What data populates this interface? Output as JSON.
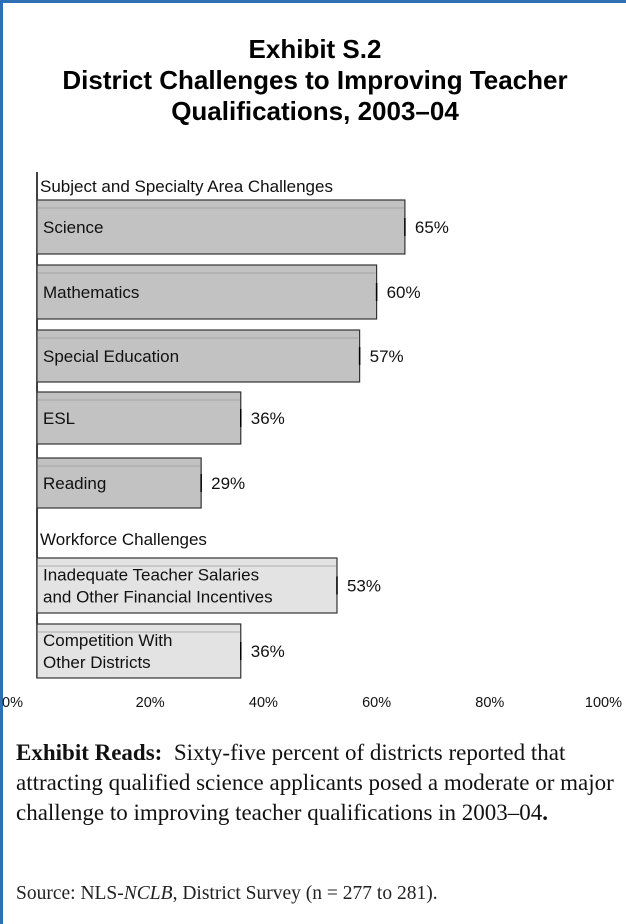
{
  "exhibit": {
    "title_line1": "Exhibit S.2",
    "title_line2": "District Challenges to Improving Teacher",
    "title_line3": "Qualifications, 2003–04"
  },
  "chart_data": {
    "type": "bar",
    "orientation": "horizontal",
    "groups": [
      {
        "heading": "Subject and Specialty Area Challenges",
        "categories": [
          {
            "label": [
              "Science"
            ],
            "value": 65,
            "value_label": "65%"
          },
          {
            "label": [
              "Mathematics"
            ],
            "value": 60,
            "value_label": "60%"
          },
          {
            "label": [
              "Special Education"
            ],
            "value": 57,
            "value_label": "57%"
          },
          {
            "label": [
              "ESL"
            ],
            "value": 36,
            "value_label": "36%"
          },
          {
            "label": [
              "Reading"
            ],
            "value": 29,
            "value_label": "29%"
          }
        ]
      },
      {
        "heading": "Workforce Challenges",
        "categories": [
          {
            "label": [
              "Inadequate Teacher Salaries",
              "and Other Financial Incentives"
            ],
            "value": 53,
            "value_label": "53%"
          },
          {
            "label": [
              "Competition With",
              "Other Districts"
            ],
            "value": 36,
            "value_label": "36%"
          }
        ]
      }
    ],
    "xlim": [
      0,
      100
    ],
    "x_ticks": [
      "0%",
      "20%",
      "40%",
      "60%",
      "80%",
      "100%"
    ],
    "bar_colors": {
      "subject": "#c2c2c2",
      "workforce": "#e3e3e3"
    },
    "grid": false
  },
  "reads": {
    "label": "Exhibit Reads:",
    "text": "Sixty-five percent of districts reported that attracting qualified science applicants posed a moderate or major challenge to improving teacher qualifications in 2003–04",
    "end": "."
  },
  "source": {
    "prefix": "Source:  NLS-",
    "italic": "NCLB",
    "suffix": ", District Survey (n = 277 to 281)."
  }
}
